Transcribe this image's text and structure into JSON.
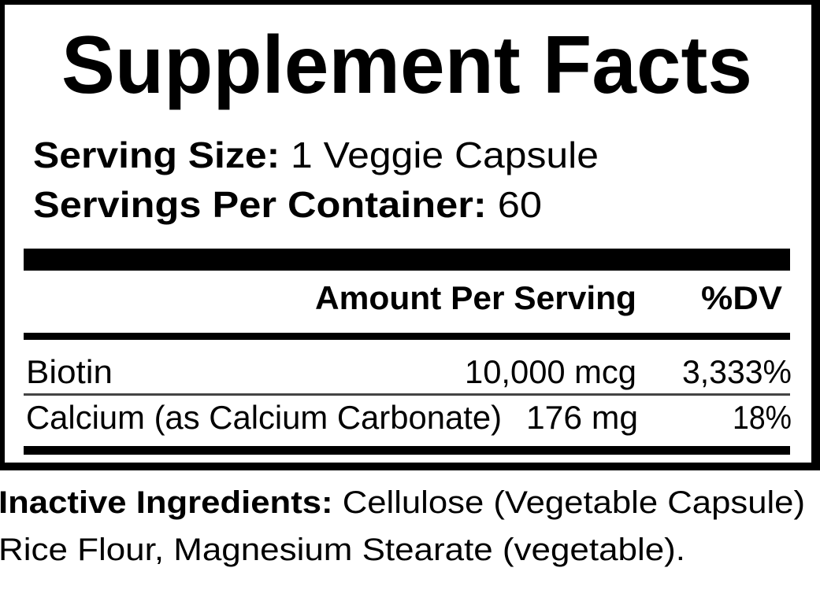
{
  "label": {
    "title": "Supplement Facts",
    "serving_size": {
      "label": "Serving Size:",
      "value": "1 Veggie Capsule"
    },
    "servings_per_container": {
      "label": "Servings Per Container:",
      "value": "60"
    },
    "columns": {
      "amount": "Amount Per Serving",
      "dv": "%DV"
    },
    "rows": [
      {
        "name": "Biotin",
        "amount": "10,000 mcg",
        "dv": "3,333%"
      },
      {
        "name": "Calcium (as Calcium Carbonate)",
        "amount": "176 mg",
        "dv": "18%"
      }
    ]
  },
  "inactive": {
    "label": "Inactive Ingredients:",
    "line1": "Cellulose (Vegetable Capsule)",
    "line2": "Rice Flour, Magnesium Stearate (vegetable)."
  }
}
